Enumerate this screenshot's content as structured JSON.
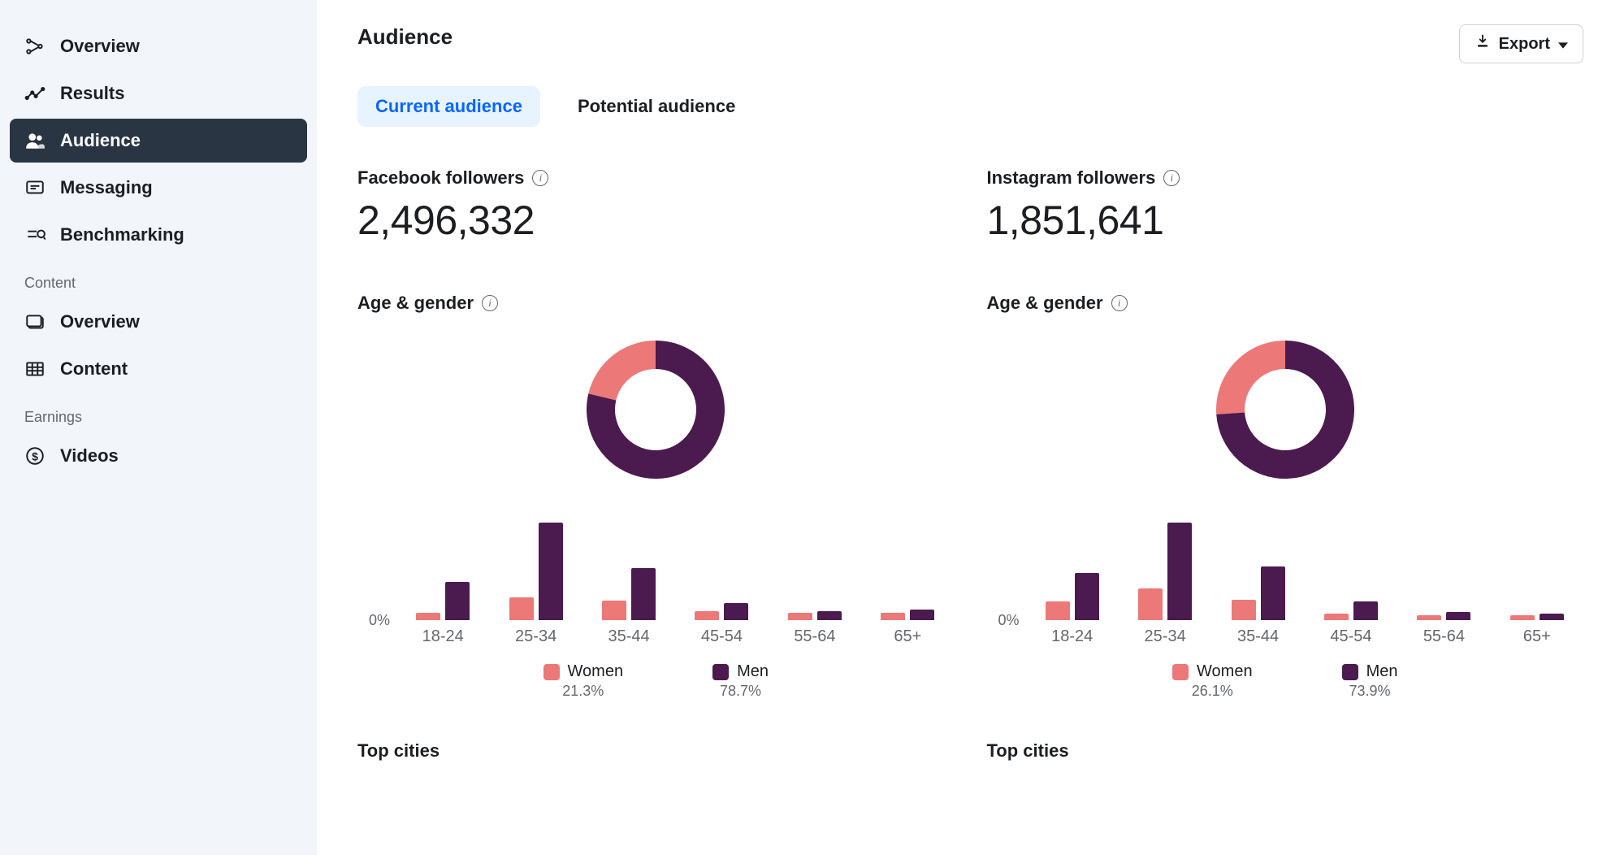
{
  "sidebar": {
    "items": [
      {
        "label": "Overview",
        "active": false
      },
      {
        "label": "Results",
        "active": false
      },
      {
        "label": "Audience",
        "active": true
      },
      {
        "label": "Messaging",
        "active": false
      },
      {
        "label": "Benchmarking",
        "active": false
      }
    ],
    "section_content_label": "Content",
    "content_items": [
      {
        "label": "Overview"
      },
      {
        "label": "Content"
      }
    ],
    "section_earnings_label": "Earnings",
    "earnings_items": [
      {
        "label": "Videos"
      }
    ]
  },
  "header": {
    "title": "Audience",
    "export_label": "Export"
  },
  "tabs": [
    {
      "label": "Current audience",
      "active": true
    },
    {
      "label": "Potential audience",
      "active": false
    }
  ],
  "colors": {
    "women": "#ec7878",
    "men": "#4b1a4e",
    "text_muted": "#65676b",
    "sidebar_active_bg": "#2a3544",
    "tab_active_bg": "#e7f3ff",
    "tab_active_text": "#0866ff"
  },
  "panels": {
    "facebook": {
      "followers_label": "Facebook followers",
      "followers_value": "2,496,332",
      "age_gender_label": "Age & gender",
      "top_cities_label": "Top cities",
      "donut": {
        "women_pct": 21.3,
        "men_pct": 78.7
      },
      "legend": {
        "women_label": "Women",
        "women_pct": "21.3%",
        "men_label": "Men",
        "men_pct": "78.7%"
      },
      "bar_chart": {
        "y_zero_label": "0%",
        "y_max_pct": 28,
        "categories": [
          "18-24",
          "25-34",
          "35-44",
          "45-54",
          "55-64",
          "65+"
        ],
        "women": [
          2.0,
          6.5,
          5.5,
          2.5,
          2.0,
          2.0
        ],
        "men": [
          11.0,
          28.0,
          15.0,
          5.0,
          2.5,
          3.0
        ]
      }
    },
    "instagram": {
      "followers_label": "Instagram followers",
      "followers_value": "1,851,641",
      "age_gender_label": "Age & gender",
      "top_cities_label": "Top cities",
      "donut": {
        "women_pct": 26.1,
        "men_pct": 73.9
      },
      "legend": {
        "women_label": "Women",
        "women_pct": "26.1%",
        "men_label": "Men",
        "men_pct": "73.9%"
      },
      "bar_chart": {
        "y_zero_label": "0%",
        "y_max_pct": 29,
        "categories": [
          "18-24",
          "25-34",
          "35-44",
          "45-54",
          "55-64",
          "65+"
        ],
        "women": [
          5.5,
          9.5,
          6.0,
          2.0,
          1.5,
          1.5
        ],
        "men": [
          14.0,
          29.0,
          16.0,
          5.5,
          2.5,
          2.0
        ]
      }
    }
  }
}
